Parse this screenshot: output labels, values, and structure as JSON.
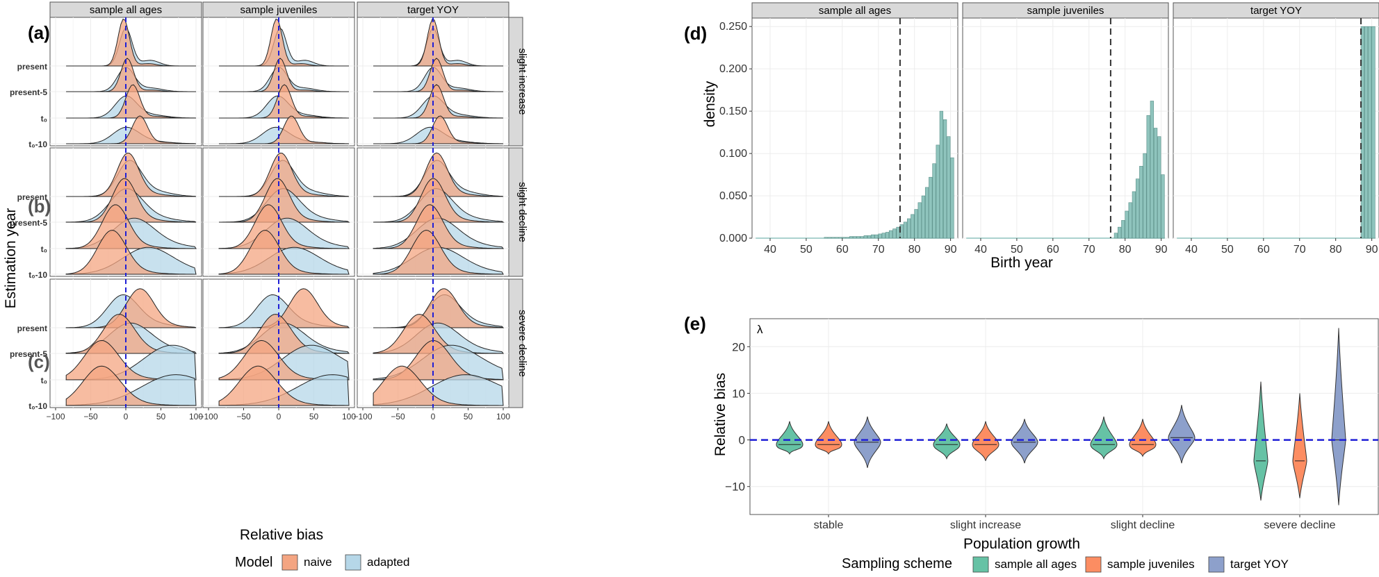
{
  "chart_data": [
    {
      "panel": "a-c",
      "type": "ridgeline",
      "panel_labels": [
        "(a)",
        "(b)",
        "(c)"
      ],
      "columns": [
        "sample all ages",
        "sample juveniles",
        "target YOY"
      ],
      "rows": [
        "slight increase",
        "slight decline",
        "severe decline"
      ],
      "estimation_years": [
        "present",
        "present-5",
        "t₀",
        "t₀-10"
      ],
      "xlabel": "Relative bias",
      "ylabel": "Estimation year",
      "xlim": [
        -100,
        100
      ],
      "xticks": [
        "−100",
        "−50",
        "0",
        "50",
        "100"
      ],
      "xtick_values": [
        -100,
        -50,
        0,
        50,
        100
      ],
      "reference_line": 0,
      "legend_title": "Model",
      "series": [
        {
          "name": "naive",
          "color": "#f4a582"
        },
        {
          "name": "adapted",
          "color": "#b6d7e8"
        }
      ],
      "peaks_naive": [
        [
          [
            -3,
            2,
            10,
            20
          ],
          [
            -3,
            2,
            8,
            18
          ],
          [
            0,
            5,
            5,
            10
          ]
        ],
        [
          [
            3,
            -2,
            -15,
            -20
          ],
          [
            3,
            -2,
            -15,
            -20
          ],
          [
            5,
            0,
            -5,
            -10
          ]
        ],
        [
          [
            20,
            -10,
            -35,
            -35
          ],
          [
            35,
            -5,
            -25,
            -30
          ],
          [
            15,
            -20,
            0,
            -45
          ]
        ]
      ],
      "peaks_adapted": [
        [
          [
            0,
            0,
            0,
            0
          ],
          [
            2,
            0,
            -2,
            -5
          ],
          [
            0,
            0,
            0,
            -5
          ]
        ],
        [
          [
            5,
            0,
            10,
            30
          ],
          [
            5,
            5,
            10,
            20
          ],
          [
            5,
            3,
            5,
            5
          ]
        ],
        [
          [
            -5,
            5,
            60,
            65
          ],
          [
            -10,
            5,
            40,
            70
          ],
          [
            15,
            5,
            20,
            40
          ]
        ]
      ]
    },
    {
      "panel": "d",
      "type": "histogram",
      "panel_label": "(d)",
      "columns": [
        "sample all ages",
        "sample juveniles",
        "target YOY"
      ],
      "xlabel": "Birth year",
      "ylabel": "density",
      "xlim": [
        35,
        92
      ],
      "ylim": [
        0,
        0.26
      ],
      "xticks": [
        "40",
        "50",
        "60",
        "70",
        "80",
        "90"
      ],
      "xtick_values": [
        40,
        50,
        60,
        70,
        80,
        90
      ],
      "yticks": [
        "0.000",
        "0.050",
        "0.100",
        "0.150",
        "0.200",
        "0.250"
      ],
      "ytick_values": [
        0,
        0.05,
        0.1,
        0.15,
        0.2,
        0.25
      ],
      "dashed_lines": [
        76,
        76,
        87
      ],
      "bar_color": "#8fc4bd",
      "bins_all_ages": [
        [
          55,
          0.001
        ],
        [
          56,
          0.001
        ],
        [
          57,
          0.001
        ],
        [
          58,
          0.001
        ],
        [
          59,
          0.001
        ],
        [
          60,
          0.001
        ],
        [
          61,
          0.001
        ],
        [
          62,
          0.002
        ],
        [
          63,
          0.002
        ],
        [
          64,
          0.002
        ],
        [
          65,
          0.002
        ],
        [
          66,
          0.003
        ],
        [
          67,
          0.003
        ],
        [
          68,
          0.004
        ],
        [
          69,
          0.004
        ],
        [
          70,
          0.005
        ],
        [
          71,
          0.006
        ],
        [
          72,
          0.007
        ],
        [
          73,
          0.009
        ],
        [
          74,
          0.011
        ],
        [
          75,
          0.013
        ],
        [
          76,
          0.016
        ],
        [
          77,
          0.019
        ],
        [
          78,
          0.023
        ],
        [
          79,
          0.028
        ],
        [
          80,
          0.034
        ],
        [
          81,
          0.042
        ],
        [
          82,
          0.05
        ],
        [
          83,
          0.06
        ],
        [
          84,
          0.072
        ],
        [
          85,
          0.088
        ],
        [
          86,
          0.11
        ],
        [
          87,
          0.15
        ],
        [
          88,
          0.14
        ],
        [
          89,
          0.12
        ],
        [
          90,
          0.095
        ]
      ],
      "bins_juveniles": [
        [
          77,
          0.006
        ],
        [
          78,
          0.013
        ],
        [
          79,
          0.021
        ],
        [
          80,
          0.032
        ],
        [
          81,
          0.042
        ],
        [
          82,
          0.055
        ],
        [
          83,
          0.07
        ],
        [
          84,
          0.085
        ],
        [
          85,
          0.1
        ],
        [
          86,
          0.145
        ],
        [
          87,
          0.162
        ],
        [
          88,
          0.13
        ],
        [
          89,
          0.12
        ],
        [
          90,
          0.075
        ]
      ],
      "bins_yoy": [
        [
          87,
          0.25
        ],
        [
          88,
          0.25
        ],
        [
          89,
          0.25
        ],
        [
          90,
          0.25
        ]
      ]
    },
    {
      "panel": "e",
      "type": "violin",
      "panel_label": "(e)",
      "annotation": "λ",
      "categories": [
        "stable",
        "slight increase",
        "slight decline",
        "severe decline"
      ],
      "xlabel": "Population growth",
      "ylabel": "Relative bias",
      "ylim": [
        -16,
        26
      ],
      "yticks": [
        "−10",
        "0",
        "10",
        "20"
      ],
      "ytick_values": [
        -10,
        0,
        10,
        20
      ],
      "reference_line": 0,
      "legend_title": "Sampling scheme",
      "series": [
        {
          "name": "sample all ages",
          "color": "#66c2a5",
          "stats": [
            [
              -3,
              -1,
              4
            ],
            [
              -4,
              -1,
              3.5
            ],
            [
              -4,
              -1,
              5
            ],
            [
              -13,
              -4.5,
              12.5
            ]
          ]
        },
        {
          "name": "sample juveniles",
          "color": "#fc8d62",
          "stats": [
            [
              -3,
              -1,
              4
            ],
            [
              -4.5,
              -1,
              4
            ],
            [
              -3.5,
              -1,
              4.5
            ],
            [
              -12.5,
              -4.5,
              10
            ]
          ]
        },
        {
          "name": "target YOY",
          "color": "#8da0cb",
          "stats": [
            [
              -6,
              -0.5,
              5
            ],
            [
              -5,
              -0.5,
              4.5
            ],
            [
              -5,
              0.5,
              7.5
            ],
            [
              -14,
              0,
              24
            ]
          ]
        }
      ]
    }
  ]
}
